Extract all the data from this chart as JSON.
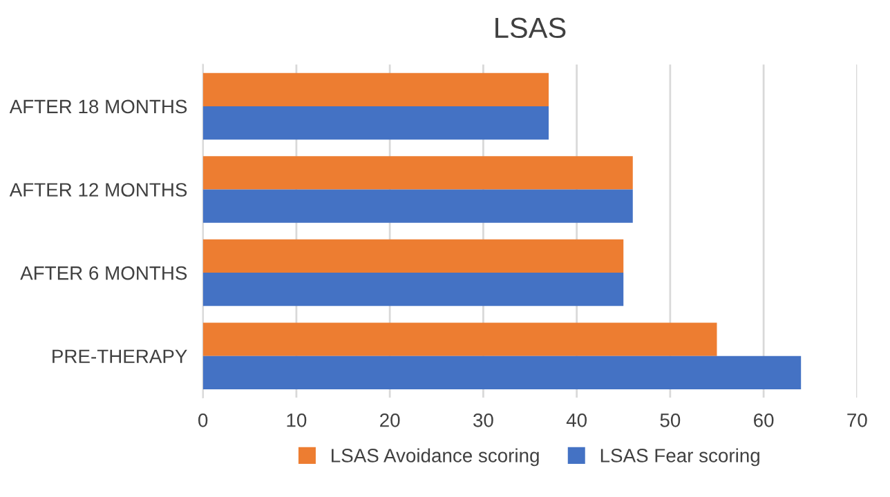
{
  "chart_data": {
    "type": "bar",
    "orientation": "horizontal",
    "title": "LSAS",
    "categories": [
      "AFTER 18 MONTHS",
      "AFTER 12 MONTHS",
      "AFTER 6 MONTHS",
      "PRE-THERAPY"
    ],
    "series": [
      {
        "name": "LSAS Avoidance scoring",
        "color": "#ed7d31",
        "values": [
          37,
          46,
          45,
          55
        ]
      },
      {
        "name": "LSAS Fear scoring",
        "color": "#4472c4",
        "values": [
          37,
          46,
          45,
          64
        ]
      }
    ],
    "xlim": [
      0,
      70
    ],
    "xticks": [
      0,
      10,
      20,
      30,
      40,
      50,
      60,
      70
    ],
    "grid": "x",
    "legend": "bottom"
  }
}
